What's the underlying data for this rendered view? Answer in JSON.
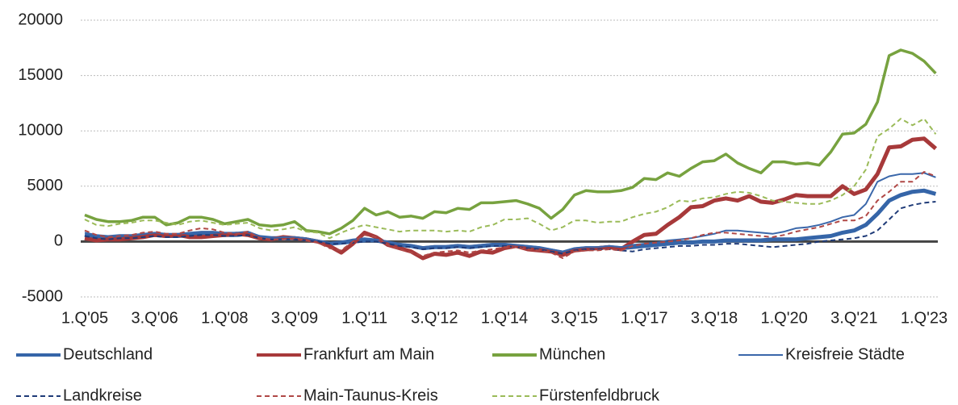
{
  "chart_data": {
    "type": "line",
    "categories": [
      "1.Q'05",
      null,
      null,
      null,
      null,
      null,
      "3.Q'06",
      null,
      null,
      null,
      null,
      null,
      "1.Q'08",
      null,
      null,
      null,
      null,
      null,
      "3.Q'09",
      null,
      null,
      null,
      null,
      null,
      "1.Q'11",
      null,
      null,
      null,
      null,
      null,
      "3.Q'12",
      null,
      null,
      null,
      null,
      null,
      "1.Q'14",
      null,
      null,
      null,
      null,
      null,
      "3.Q'15",
      null,
      null,
      null,
      null,
      null,
      "1.Q'17",
      null,
      null,
      null,
      null,
      null,
      "3.Q'18",
      null,
      null,
      null,
      null,
      null,
      "1.Q'20",
      null,
      null,
      null,
      null,
      null,
      "3.Q'21",
      null,
      null,
      null,
      null,
      null,
      "1.Q'23",
      null
    ],
    "ylim": [
      -5000,
      20000
    ],
    "yticks": [
      -5000,
      0,
      5000,
      10000,
      15000,
      20000
    ],
    "grid": true,
    "series": [
      {
        "name": "Deutschland",
        "color": "#3565a8",
        "line_width": 5,
        "dashed": false,
        "values": [
          600,
          400,
          300,
          400,
          400,
          500,
          600,
          500,
          500,
          600,
          700,
          700,
          600,
          600,
          700,
          400,
          300,
          300,
          300,
          200,
          0,
          -200,
          -100,
          0,
          100,
          100,
          -100,
          -300,
          -400,
          -600,
          -500,
          -500,
          -400,
          -500,
          -400,
          -300,
          -300,
          -400,
          -500,
          -600,
          -800,
          -1000,
          -700,
          -600,
          -600,
          -500,
          -600,
          -500,
          -400,
          -300,
          -200,
          -100,
          -100,
          0,
          0,
          100,
          100,
          100,
          100,
          200,
          200,
          200,
          300,
          400,
          500,
          800,
          1000,
          1500,
          2500,
          3700,
          4200,
          4500,
          4600,
          4300
        ]
      },
      {
        "name": "Frankfurt am Main",
        "color": "#a7393a",
        "line_width": 5,
        "dashed": false,
        "values": [
          300,
          100,
          200,
          200,
          300,
          400,
          600,
          500,
          600,
          400,
          400,
          500,
          600,
          700,
          600,
          300,
          200,
          400,
          300,
          200,
          0,
          -400,
          -1000,
          -200,
          800,
          400,
          -300,
          -600,
          -900,
          -1500,
          -1100,
          -1200,
          -1000,
          -1300,
          -900,
          -1000,
          -600,
          -400,
          -700,
          -800,
          -900,
          -1200,
          -800,
          -700,
          -600,
          -500,
          -700,
          0,
          600,
          700,
          1500,
          2200,
          3100,
          3200,
          3700,
          3900,
          3700,
          4100,
          3600,
          3500,
          3800,
          4200,
          4100,
          4100,
          4100,
          5000,
          4300,
          4700,
          6100,
          8500,
          8600,
          9200,
          9300,
          8400
        ]
      },
      {
        "name": "München",
        "color": "#77a23f",
        "line_width": 3.5,
        "dashed": false,
        "values": [
          2400,
          2000,
          1800,
          1800,
          1900,
          2200,
          2200,
          1500,
          1700,
          2200,
          2200,
          2000,
          1600,
          1800,
          2000,
          1500,
          1400,
          1500,
          1800,
          1000,
          900,
          700,
          1200,
          1900,
          3000,
          2400,
          2700,
          2200,
          2300,
          2100,
          2700,
          2600,
          3000,
          2900,
          3500,
          3500,
          3600,
          3700,
          3400,
          3000,
          2100,
          2900,
          4200,
          4600,
          4500,
          4500,
          4600,
          4900,
          5700,
          5600,
          6200,
          5900,
          6600,
          7200,
          7300,
          7900,
          7100,
          6600,
          6200,
          7200,
          7200,
          7000,
          7100,
          6900,
          8100,
          9700,
          9800,
          10600,
          12600,
          16800,
          17300,
          17000,
          16300,
          15200
        ]
      },
      {
        "name": "Kreisfreie Städte",
        "color": "#3a67aa",
        "line_width": 2,
        "dashed": false,
        "values": [
          800,
          600,
          500,
          600,
          600,
          700,
          800,
          700,
          700,
          800,
          900,
          900,
          800,
          800,
          900,
          500,
          300,
          400,
          400,
          300,
          100,
          -100,
          0,
          200,
          300,
          200,
          0,
          -200,
          -300,
          -500,
          -400,
          -400,
          -300,
          -400,
          -300,
          -200,
          -200,
          -300,
          -400,
          -500,
          -700,
          -900,
          -600,
          -500,
          -500,
          -400,
          -500,
          -300,
          -200,
          -100,
          100,
          200,
          300,
          500,
          700,
          1000,
          1000,
          900,
          800,
          700,
          900,
          1200,
          1300,
          1500,
          1800,
          2200,
          2400,
          3400,
          5400,
          5900,
          6100,
          6100,
          6200,
          5800
        ]
      },
      {
        "name": "Landkreise",
        "color": "#1f3b78",
        "line_width": 2,
        "dashed": true,
        "values": [
          500,
          300,
          200,
          300,
          300,
          400,
          500,
          400,
          400,
          500,
          600,
          600,
          500,
          500,
          600,
          300,
          200,
          200,
          200,
          100,
          0,
          -200,
          -200,
          -100,
          0,
          0,
          -200,
          -400,
          -500,
          -700,
          -600,
          -600,
          -500,
          -600,
          -500,
          -400,
          -400,
          -500,
          -600,
          -700,
          -900,
          -1100,
          -800,
          -700,
          -700,
          -700,
          -800,
          -900,
          -700,
          -600,
          -500,
          -400,
          -400,
          -300,
          -300,
          -200,
          -200,
          -300,
          -400,
          -500,
          -400,
          -300,
          -200,
          0,
          100,
          200,
          300,
          500,
          1000,
          2000,
          3000,
          3300,
          3500,
          3600
        ]
      },
      {
        "name": "Main-Taunus-Kreis",
        "color": "#b04846",
        "line_width": 2,
        "dashed": true,
        "values": [
          1000,
          600,
          400,
          500,
          600,
          800,
          900,
          700,
          700,
          1000,
          1200,
          1100,
          800,
          700,
          900,
          300,
          200,
          200,
          300,
          100,
          -100,
          -600,
          -800,
          0,
          600,
          400,
          -300,
          -700,
          -1000,
          -1300,
          -1000,
          -900,
          -800,
          -1000,
          -800,
          -700,
          -500,
          -500,
          -700,
          -800,
          -1000,
          -1500,
          -900,
          -800,
          -800,
          -700,
          -800,
          -400,
          -200,
          -100,
          0,
          100,
          300,
          600,
          800,
          800,
          700,
          600,
          500,
          400,
          600,
          900,
          1100,
          1300,
          1600,
          1900,
          1900,
          2300,
          3700,
          4500,
          5400,
          5400,
          6300,
          5900
        ]
      },
      {
        "name": "Fürstenfeldbruck",
        "color": "#9bbb59",
        "line_width": 2,
        "dashed": true,
        "values": [
          2000,
          1500,
          1400,
          1600,
          1700,
          1900,
          1900,
          1700,
          1500,
          1800,
          1900,
          1700,
          1500,
          1600,
          1700,
          1200,
          1000,
          1100,
          1300,
          900,
          800,
          300,
          800,
          1200,
          1500,
          1300,
          1100,
          900,
          1000,
          1000,
          1000,
          900,
          1000,
          900,
          1300,
          1500,
          2000,
          2000,
          2100,
          1600,
          1000,
          1300,
          1900,
          1900,
          1700,
          1800,
          1800,
          2200,
          2500,
          2700,
          3100,
          3700,
          3600,
          3900,
          4000,
          4300,
          4500,
          4400,
          4100,
          3700,
          3600,
          3500,
          3400,
          3400,
          3700,
          4200,
          5000,
          6500,
          9500,
          10200,
          11100,
          10500,
          11100,
          9700
        ]
      }
    ]
  }
}
